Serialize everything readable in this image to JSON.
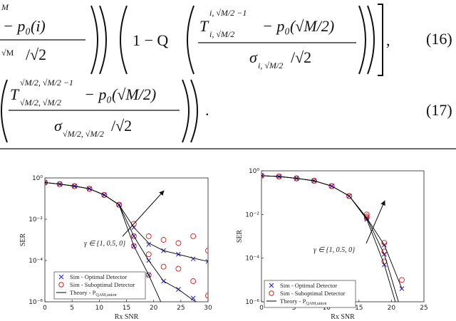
{
  "equations": [
    {
      "number": "(16)",
      "left_top": "M",
      "left_numerator": "− p₀(i)",
      "left_denominator": "√M",
      "left_denominator_rest": "/√2",
      "middle": "1 − Q",
      "numerator_symbol": "T",
      "numerator_sup": "i, √M/2 −1",
      "numerator_sub": "i, √M/2",
      "numerator_rest": "− p₀(√M/2)",
      "denominator": "σ",
      "denominator_sub": "i, √M/2",
      "denominator_rest": "/√2",
      "end": ","
    },
    {
      "number": "(17)",
      "numerator_symbol": "T",
      "numerator_sup": "√M/2, √M/2 −1",
      "numerator_sub": "√M/2, √M/2",
      "numerator_rest": "− p₀(√M/2)",
      "denominator": "σ",
      "denominator_sub": "√M/2, √M/2",
      "denominator_rest": "/√2",
      "end": "."
    }
  ],
  "chart_data": [
    {
      "type": "scatter",
      "y_scale": "log",
      "xlabel": "Rx SNR",
      "ylabel": "SER",
      "legend": "lower left",
      "annotation": "γ ∈ {1, 0.5, 0}",
      "xlim": [
        0,
        30
      ],
      "xticks": [
        0,
        5,
        10,
        15,
        20,
        25,
        30
      ],
      "ylim": [
        1e-06,
        1
      ],
      "yticks": [
        {
          "value": 1,
          "label": "10⁰"
        },
        {
          "value": 0.01,
          "label": "10⁻²"
        },
        {
          "value": 0.0001,
          "label": "10⁻⁴"
        },
        {
          "value": 1e-06,
          "label": "10⁻⁶"
        }
      ],
      "x": [
        0,
        2.73,
        5.45,
        8.18,
        10.91,
        13.64,
        16.36,
        19.09,
        21.82,
        24.55,
        27.27,
        30
      ],
      "series": [
        {
          "name": "Sim - Optimal Detector",
          "color": "#1f1fcc",
          "marker": "x",
          "values": [
            [
              0.6,
              0.5,
              0.4,
              0.3,
              0.15,
              0.05,
              0.004,
              0.0006,
              0.0003,
              0.0002,
              0.00012,
              9e-05
            ],
            [
              0.6,
              0.5,
              0.4,
              0.3,
              0.15,
              0.05,
              0.0015,
              0.0001,
              1e-05,
              4e-06,
              1.5e-06,
              null
            ],
            [
              0.6,
              0.5,
              0.4,
              0.3,
              0.15,
              0.05,
              0.0005,
              2e-05,
              null,
              null,
              null,
              null
            ]
          ]
        },
        {
          "name": "Sim - Suboptimal Detector",
          "color": "#cc2222",
          "marker": "circle",
          "values": [
            [
              0.6,
              0.5,
              0.4,
              0.3,
              0.15,
              0.05,
              0.006,
              0.0015,
              0.001,
              0.0007,
              0.0015,
              0.0003
            ],
            [
              0.6,
              0.5,
              0.4,
              0.3,
              0.15,
              0.05,
              0.0015,
              0.0002,
              5e-05,
              4e-05,
              1e-05,
              2e-06
            ],
            [
              0.6,
              0.5,
              0.4,
              0.3,
              0.15,
              0.05,
              0.0005,
              2e-05,
              null,
              null,
              null,
              null
            ]
          ]
        },
        {
          "name": "Theory - P",
          "name_sub": "QAM,union",
          "color": "#000000",
          "marker": "line",
          "values": [
            [
              0.6,
              0.5,
              0.4,
              0.3,
              0.15,
              0.05,
              0.004,
              0.0007,
              0.0003,
              0.0002,
              0.00013,
              9e-05
            ],
            [
              0.6,
              0.5,
              0.4,
              0.3,
              0.15,
              0.05,
              0.0015,
              0.0001,
              1e-05,
              4e-06,
              1.2e-06,
              5e-07
            ],
            [
              0.6,
              0.5,
              0.4,
              0.3,
              0.15,
              0.05,
              0.0005,
              2e-05,
              5e-07,
              null,
              null,
              null
            ]
          ]
        }
      ]
    },
    {
      "type": "scatter",
      "y_scale": "log",
      "xlabel": "Rx SNR",
      "ylabel": "SER",
      "legend": "lower left",
      "annotation": "γ ∈ {1, 0.5, 0}",
      "xlim": [
        0,
        25
      ],
      "xticks": [
        0,
        5,
        10,
        15,
        20,
        25
      ],
      "ylim": [
        1e-06,
        1
      ],
      "yticks": [
        {
          "value": 1,
          "label": "10⁰"
        },
        {
          "value": 0.01,
          "label": "10⁻²"
        },
        {
          "value": 0.0001,
          "label": "10⁻⁴"
        },
        {
          "value": 1e-06,
          "label": "10⁻⁶"
        }
      ],
      "x": [
        0,
        2.7,
        5.4,
        8.1,
        10.8,
        13.5,
        16.2,
        18.9,
        21.6
      ],
      "series": [
        {
          "name": "Sim - Optimal Detector",
          "color": "#1f1fcc",
          "marker": "x",
          "values": [
            [
              0.6,
              0.55,
              0.45,
              0.35,
              0.2,
              0.07,
              0.007,
              0.0004,
              4e-06
            ],
            [
              0.6,
              0.55,
              0.45,
              0.35,
              0.2,
              0.07,
              0.007,
              0.00015,
              null
            ],
            [
              0.6,
              0.55,
              0.45,
              0.35,
              0.2,
              0.07,
              0.006,
              5e-05,
              null
            ]
          ]
        },
        {
          "name": "Sim - Suboptimal Detector",
          "color": "#cc2222",
          "marker": "circle",
          "values": [
            [
              0.6,
              0.55,
              0.45,
              0.35,
              0.2,
              0.07,
              0.01,
              0.0005,
              1e-05
            ],
            [
              0.6,
              0.55,
              0.45,
              0.35,
              0.2,
              0.07,
              0.008,
              0.0002,
              null
            ],
            [
              0.6,
              0.55,
              0.45,
              0.35,
              0.2,
              0.07,
              0.007,
              7e-05,
              null
            ]
          ]
        },
        {
          "name": "Theory - P",
          "name_sub": "QAM,union",
          "color": "#000000",
          "marker": "line",
          "values": [
            [
              0.6,
              0.55,
              0.45,
              0.35,
              0.2,
              0.07,
              0.007,
              0.0004,
              4e-06
            ],
            [
              0.6,
              0.55,
              0.45,
              0.35,
              0.2,
              0.07,
              0.007,
              0.00015,
              3e-07
            ],
            [
              0.6,
              0.55,
              0.45,
              0.35,
              0.2,
              0.07,
              0.006,
              5e-05,
              1e-07
            ]
          ]
        }
      ]
    }
  ]
}
